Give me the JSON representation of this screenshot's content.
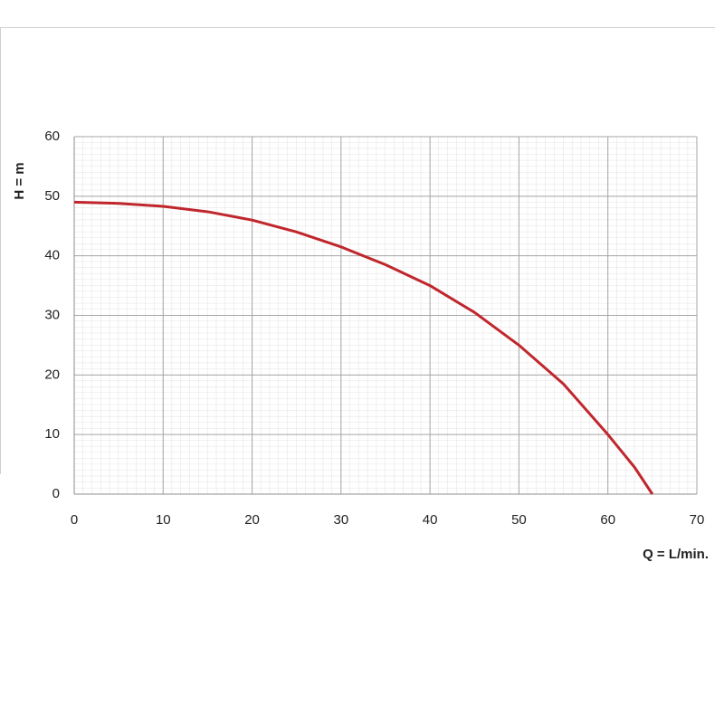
{
  "chart_data": {
    "type": "line",
    "x_label": "Q = L/min.",
    "y_label": "H = m",
    "x": [
      0,
      5,
      10,
      15,
      20,
      25,
      30,
      35,
      40,
      45,
      50,
      55,
      60,
      63,
      65
    ],
    "series": [
      {
        "name": "H",
        "color": "#c0272d",
        "values": [
          49,
          48.8,
          48.3,
          47.4,
          46,
          44,
          41.5,
          38.5,
          35,
          30.5,
          25,
          18.5,
          10,
          4.5,
          0
        ]
      }
    ],
    "xlim": [
      0,
      70
    ],
    "xticks": [
      0,
      10,
      20,
      30,
      40,
      50,
      60,
      70
    ],
    "ylim": [
      0,
      60
    ],
    "yticks": [
      0,
      10,
      20,
      30,
      40,
      50,
      60
    ],
    "grid": true
  }
}
